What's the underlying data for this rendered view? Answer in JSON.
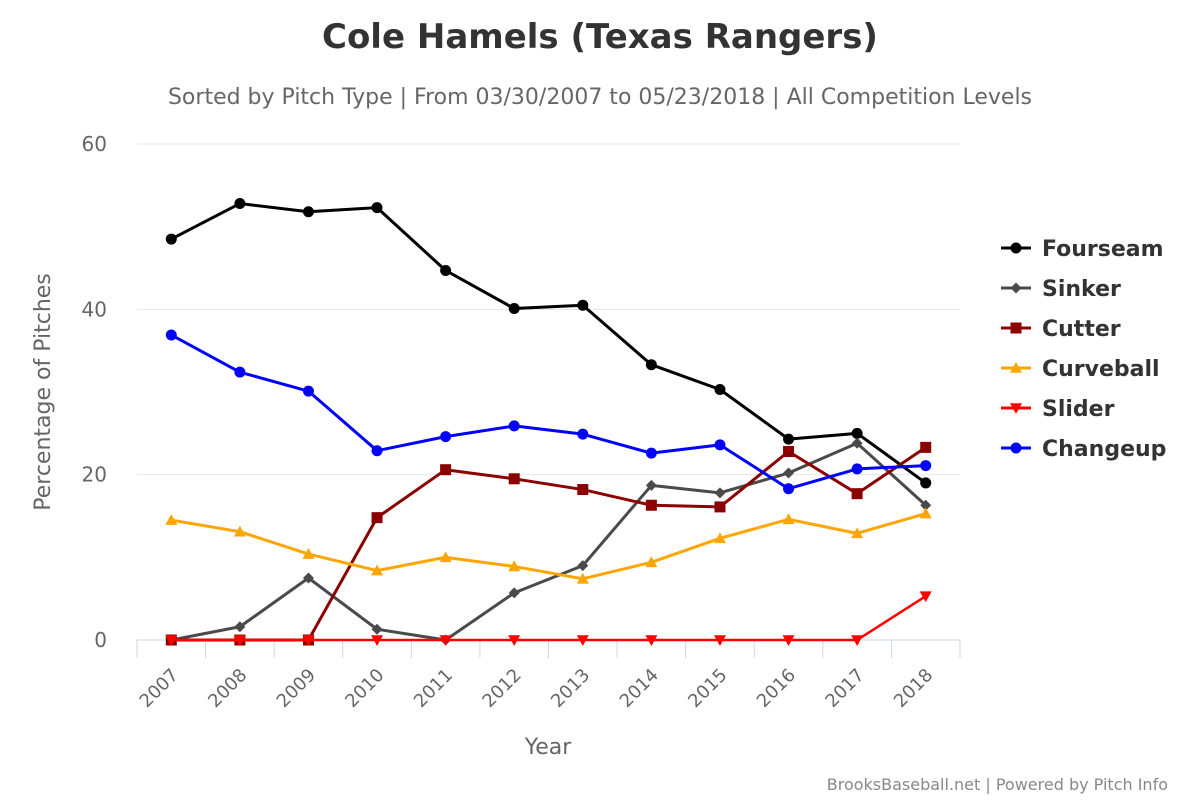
{
  "chart_data": {
    "type": "line",
    "title": "Cole Hamels (Texas Rangers)",
    "subtitle": "Sorted by Pitch Type | From 03/30/2007 to 05/23/2018 | All Competition Levels",
    "xlabel": "Year",
    "ylabel": "Percentage of Pitches",
    "ylim": [
      0,
      60
    ],
    "yticks": [
      0,
      20,
      40,
      60
    ],
    "grid": true,
    "legend_position": "right",
    "categories": [
      "2007",
      "2008",
      "2009",
      "2010",
      "2011",
      "2012",
      "2013",
      "2014",
      "2015",
      "2016",
      "2017",
      "2018"
    ],
    "series": [
      {
        "name": "Fourseam",
        "color": "#000000",
        "marker": "circle",
        "values": [
          48.5,
          52.8,
          51.8,
          52.3,
          44.7,
          40.1,
          40.5,
          33.3,
          30.3,
          24.3,
          25.0,
          19.0
        ]
      },
      {
        "name": "Sinker",
        "color": "#4a4a4a",
        "marker": "diamond",
        "values": [
          0,
          1.6,
          7.5,
          1.3,
          0,
          5.7,
          9.0,
          18.7,
          17.8,
          20.2,
          23.8,
          16.3
        ]
      },
      {
        "name": "Cutter",
        "color": "#8b0000",
        "marker": "square",
        "values": [
          0,
          0,
          0,
          14.8,
          20.6,
          19.5,
          18.2,
          16.3,
          16.1,
          22.8,
          17.7,
          23.3
        ]
      },
      {
        "name": "Curveball",
        "color": "#ffa500",
        "marker": "triangle",
        "values": [
          14.5,
          13.1,
          10.4,
          8.4,
          10.0,
          8.9,
          7.4,
          9.4,
          12.3,
          14.6,
          12.9,
          15.3
        ]
      },
      {
        "name": "Slider",
        "color": "#ff0000",
        "marker": "triangle-down",
        "values": [
          0,
          0,
          0,
          0,
          0,
          0,
          0,
          0,
          0,
          0,
          0,
          5.3
        ]
      },
      {
        "name": "Changeup",
        "color": "#0000ff",
        "marker": "circle",
        "values": [
          36.9,
          32.4,
          30.1,
          22.9,
          24.6,
          25.9,
          24.9,
          22.6,
          23.6,
          18.3,
          20.7,
          21.1
        ]
      }
    ],
    "credits": "BrooksBaseball.net | Powered by Pitch Info"
  }
}
